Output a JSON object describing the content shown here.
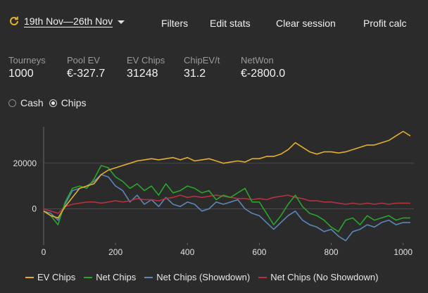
{
  "header": {
    "date_range": "19th Nov—26th Nov",
    "filters_label": "Filters",
    "edit_stats_label": "Edit stats",
    "clear_session_label": "Clear session",
    "profit_calc_label": "Profit calc"
  },
  "stats": [
    {
      "label": "Tourneys",
      "value": "1000"
    },
    {
      "label": "Pool EV",
      "value": "€-327.7"
    },
    {
      "label": "EV Chips",
      "value": "31248"
    },
    {
      "label": "ChipEV/t",
      "value": "31.2"
    },
    {
      "label": "NetWon",
      "value": "€-2800.0"
    }
  ],
  "mode": {
    "cash_label": "Cash",
    "chips_label": "Chips",
    "selected": "Chips"
  },
  "chart_data": {
    "type": "line",
    "xlim": [
      0,
      1030
    ],
    "ylim": [
      -15000,
      36000
    ],
    "xticks": [
      0,
      200,
      400,
      600,
      800,
      1000
    ],
    "yticks": [
      0,
      20000
    ],
    "xtick_labels": [
      "0",
      "200",
      "400",
      "600",
      "800",
      "1000"
    ],
    "ytick_labels": [
      "0",
      "20000"
    ],
    "grid": "horizontal",
    "legend_position": "bottom",
    "series": [
      {
        "name": "EV Chips",
        "color": "#e4ae2c",
        "x": [
          0,
          20,
          40,
          60,
          80,
          100,
          120,
          140,
          160,
          180,
          200,
          220,
          240,
          260,
          280,
          300,
          320,
          340,
          360,
          380,
          400,
          420,
          440,
          460,
          480,
          500,
          520,
          540,
          560,
          580,
          600,
          620,
          640,
          660,
          680,
          700,
          720,
          740,
          760,
          780,
          800,
          820,
          840,
          860,
          880,
          900,
          920,
          940,
          960,
          980,
          1000,
          1020
        ],
        "y": [
          -1000,
          -3000,
          -4000,
          1000,
          5000,
          9000,
          10000,
          11000,
          15000,
          17000,
          18000,
          19000,
          20000,
          21000,
          21500,
          22000,
          21500,
          22000,
          22500,
          21500,
          22500,
          21000,
          21500,
          22000,
          21000,
          20000,
          20500,
          21000,
          20500,
          22000,
          22000,
          23000,
          23000,
          24000,
          26000,
          29000,
          27000,
          25000,
          24000,
          25000,
          25000,
          24500,
          25000,
          26000,
          27000,
          28000,
          28000,
          29000,
          30000,
          32000,
          34000,
          32000
        ]
      },
      {
        "name": "Net Chips",
        "color": "#2aa52a",
        "x": [
          0,
          20,
          40,
          60,
          80,
          100,
          120,
          140,
          160,
          180,
          200,
          220,
          240,
          260,
          280,
          300,
          320,
          340,
          360,
          380,
          400,
          420,
          440,
          460,
          480,
          500,
          520,
          540,
          560,
          580,
          600,
          620,
          640,
          660,
          680,
          700,
          720,
          740,
          760,
          780,
          800,
          820,
          840,
          860,
          880,
          900,
          920,
          940,
          960,
          980,
          1000,
          1020
        ],
        "y": [
          -1000,
          -3000,
          -7000,
          3000,
          9000,
          10000,
          9000,
          13000,
          19000,
          18000,
          14000,
          12000,
          9000,
          11000,
          8000,
          10000,
          6000,
          11000,
          7000,
          8000,
          10000,
          9000,
          7000,
          8000,
          4000,
          6000,
          5000,
          7000,
          9000,
          3000,
          3000,
          -2000,
          -7000,
          -3000,
          2000,
          6000,
          1000,
          -2000,
          -3000,
          -5000,
          -8000,
          -10000,
          -5000,
          -4000,
          -7000,
          -3000,
          -5000,
          -4000,
          -3000,
          -5000,
          -4000,
          -4000
        ]
      },
      {
        "name": "Net Chips (Showdown)",
        "color": "#5a86b8",
        "x": [
          0,
          20,
          40,
          60,
          80,
          100,
          120,
          140,
          160,
          180,
          200,
          220,
          240,
          260,
          280,
          300,
          320,
          340,
          360,
          380,
          400,
          420,
          440,
          460,
          480,
          500,
          520,
          540,
          560,
          580,
          600,
          620,
          640,
          660,
          680,
          700,
          720,
          740,
          760,
          780,
          800,
          820,
          840,
          860,
          880,
          900,
          920,
          940,
          960,
          980,
          1000,
          1020
        ],
        "y": [
          -1000,
          -2000,
          -5000,
          2000,
          8000,
          9000,
          10000,
          12000,
          15000,
          14000,
          10000,
          8000,
          3000,
          6000,
          2000,
          4000,
          1000,
          5000,
          2000,
          1000,
          3000,
          2000,
          -1000,
          0,
          3000,
          2000,
          3000,
          4000,
          0,
          -2000,
          -3000,
          -6000,
          -9000,
          -6000,
          -3000,
          -1000,
          -5000,
          -7000,
          -8000,
          -10000,
          -9000,
          -12000,
          -14000,
          -10000,
          -9000,
          -7000,
          -8000,
          -6000,
          -5000,
          -7000,
          -6000,
          -6000
        ]
      },
      {
        "name": "Net Chips (No Showdown)",
        "color": "#b53240",
        "x": [
          0,
          20,
          40,
          60,
          80,
          100,
          120,
          140,
          160,
          180,
          200,
          220,
          240,
          260,
          280,
          300,
          320,
          340,
          360,
          380,
          400,
          420,
          440,
          460,
          480,
          500,
          520,
          540,
          560,
          580,
          600,
          620,
          640,
          660,
          680,
          700,
          720,
          740,
          760,
          780,
          800,
          820,
          840,
          860,
          880,
          900,
          920,
          940,
          960,
          980,
          1000,
          1020
        ],
        "y": [
          0,
          -1000,
          -2000,
          1000,
          2000,
          2500,
          3000,
          3000,
          2500,
          3000,
          3500,
          3000,
          3500,
          4500,
          4000,
          4000,
          3500,
          4500,
          5000,
          6000,
          5000,
          5500,
          5000,
          5500,
          6000,
          5500,
          5000,
          4500,
          4500,
          4000,
          4500,
          4000,
          5000,
          5500,
          6000,
          5000,
          4500,
          3500,
          3500,
          3000,
          3000,
          2500,
          2000,
          2500,
          2000,
          2500,
          2000,
          2500,
          2000,
          2500,
          2500,
          2500
        ]
      }
    ]
  }
}
